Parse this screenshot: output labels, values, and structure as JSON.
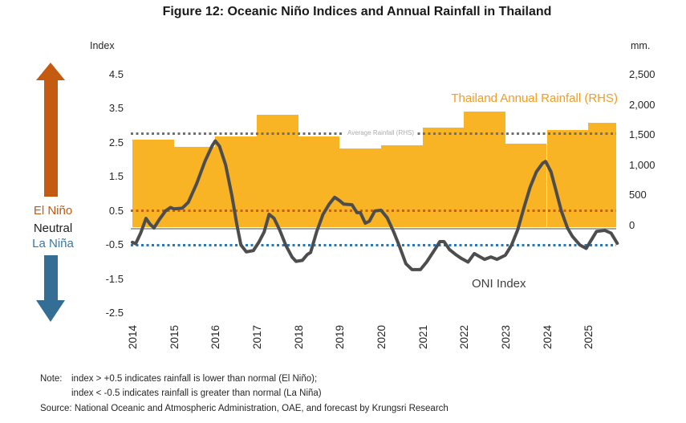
{
  "title": "Figure 12: Oceanic Niño Indices and Annual Rainfall in Thailand",
  "axes": {
    "left_unit": "Index",
    "right_unit": "mm.",
    "left_ticks": [
      "4.5",
      "3.5",
      "2.5",
      "1.5",
      "0.5",
      "-0.5",
      "-1.5",
      "-2.5"
    ],
    "right_ticks": [
      "2,500",
      "2,000",
      "1,500",
      "1,000",
      "500",
      "0"
    ]
  },
  "side_labels": {
    "el_nino": "El Niño",
    "neutral": "Neutral",
    "la_nina": "La Niña"
  },
  "legend": {
    "rainfall": "Thailand Annual Rainfall (RHS)",
    "oni": "ONI Index",
    "average": "Average Rainfall (RHS)"
  },
  "notes": {
    "label": "Note:",
    "line1": "index > +0.5 indicates rainfall is lower than normal (El Niño);",
    "line2": "index < -0.5 indicates rainfall is greater than normal (La Niña)",
    "source": "Source: National Oceanic and Atmospheric Administration, OAE, and forecast by Krungsri Research"
  },
  "colors": {
    "bar": "#F8B425",
    "rainfall_legend_text": "#F59B20",
    "oni_line": "#4D4D4D",
    "el_nino_threshold_dots": "#CE5A17",
    "la_nina_threshold_dots": "#2E75B6",
    "average_rainfall_dots": "#707070",
    "zero_line": "#A6A6A6",
    "up_arrow": "#C55A11",
    "down_arrow": "#356E94"
  },
  "chart_data": {
    "type": "combo",
    "title": "Figure 12: Oceanic Niño Indices and Annual Rainfall in Thailand",
    "left_axis": {
      "label": "Index",
      "min": -2.5,
      "max": 4.5,
      "ticks": [
        4.5,
        3.5,
        2.5,
        1.5,
        0.5,
        -0.5,
        -1.5,
        -2.5
      ]
    },
    "right_axis": {
      "label": "mm.",
      "min": 0,
      "max": 2500,
      "ticks": [
        2500,
        2000,
        1500,
        1000,
        500,
        0
      ]
    },
    "categories": [
      2014,
      2015,
      2016,
      2017,
      2018,
      2019,
      2020,
      2021,
      2022,
      2023,
      2024,
      2025
    ],
    "series": [
      {
        "name": "Thailand Annual Rainfall (RHS)",
        "type": "bar",
        "axis": "right",
        "values": [
          1440,
          1320,
          1490,
          1850,
          1490,
          1300,
          1350,
          1640,
          1900,
          1370,
          1600,
          1710
        ]
      },
      {
        "name": "ONI Index",
        "type": "line",
        "axis": "left",
        "points": [
          [
            2014.0,
            -0.42
          ],
          [
            2014.08,
            -0.46
          ],
          [
            2014.2,
            -0.15
          ],
          [
            2014.33,
            0.28
          ],
          [
            2014.42,
            0.12
          ],
          [
            2014.52,
            0.0
          ],
          [
            2014.65,
            0.25
          ],
          [
            2014.8,
            0.5
          ],
          [
            2014.92,
            0.6
          ],
          [
            2015.0,
            0.56
          ],
          [
            2015.2,
            0.58
          ],
          [
            2015.35,
            0.75
          ],
          [
            2015.55,
            1.3
          ],
          [
            2015.75,
            1.95
          ],
          [
            2015.92,
            2.4
          ],
          [
            2016.0,
            2.55
          ],
          [
            2016.1,
            2.4
          ],
          [
            2016.25,
            1.85
          ],
          [
            2016.4,
            0.95
          ],
          [
            2016.52,
            0.1
          ],
          [
            2016.62,
            -0.5
          ],
          [
            2016.75,
            -0.7
          ],
          [
            2016.92,
            -0.66
          ],
          [
            2017.05,
            -0.42
          ],
          [
            2017.18,
            -0.12
          ],
          [
            2017.3,
            0.4
          ],
          [
            2017.42,
            0.28
          ],
          [
            2017.55,
            -0.05
          ],
          [
            2017.7,
            -0.5
          ],
          [
            2017.85,
            -0.85
          ],
          [
            2017.95,
            -0.98
          ],
          [
            2018.1,
            -0.95
          ],
          [
            2018.22,
            -0.78
          ],
          [
            2018.3,
            -0.72
          ],
          [
            2018.45,
            -0.1
          ],
          [
            2018.6,
            0.4
          ],
          [
            2018.75,
            0.7
          ],
          [
            2018.88,
            0.9
          ],
          [
            2019.0,
            0.8
          ],
          [
            2019.1,
            0.7
          ],
          [
            2019.3,
            0.68
          ],
          [
            2019.42,
            0.45
          ],
          [
            2019.5,
            0.45
          ],
          [
            2019.62,
            0.14
          ],
          [
            2019.72,
            0.2
          ],
          [
            2019.85,
            0.5
          ],
          [
            2020.0,
            0.52
          ],
          [
            2020.15,
            0.3
          ],
          [
            2020.3,
            -0.1
          ],
          [
            2020.45,
            -0.55
          ],
          [
            2020.6,
            -1.05
          ],
          [
            2020.75,
            -1.22
          ],
          [
            2020.95,
            -1.22
          ],
          [
            2021.1,
            -1.0
          ],
          [
            2021.3,
            -0.63
          ],
          [
            2021.42,
            -0.4
          ],
          [
            2021.52,
            -0.4
          ],
          [
            2021.65,
            -0.63
          ],
          [
            2021.8,
            -0.78
          ],
          [
            2021.95,
            -0.9
          ],
          [
            2022.1,
            -1.0
          ],
          [
            2022.25,
            -0.75
          ],
          [
            2022.35,
            -0.82
          ],
          [
            2022.5,
            -0.92
          ],
          [
            2022.65,
            -0.85
          ],
          [
            2022.8,
            -0.92
          ],
          [
            2023.0,
            -0.8
          ],
          [
            2023.15,
            -0.5
          ],
          [
            2023.3,
            -0.05
          ],
          [
            2023.45,
            0.6
          ],
          [
            2023.6,
            1.2
          ],
          [
            2023.75,
            1.65
          ],
          [
            2023.9,
            1.9
          ],
          [
            2023.97,
            1.95
          ],
          [
            2024.1,
            1.65
          ],
          [
            2024.22,
            1.1
          ],
          [
            2024.35,
            0.5
          ],
          [
            2024.5,
            0.0
          ],
          [
            2024.62,
            -0.25
          ],
          [
            2024.8,
            -0.5
          ],
          [
            2024.95,
            -0.6
          ],
          [
            2025.1,
            -0.3
          ],
          [
            2025.2,
            -0.1
          ],
          [
            2025.4,
            -0.07
          ],
          [
            2025.55,
            -0.15
          ],
          [
            2025.7,
            -0.45
          ]
        ]
      },
      {
        "name": "Average Rainfall (RHS)",
        "type": "reference-line",
        "axis": "right",
        "value": 1540,
        "style": "dotted-gray"
      },
      {
        "name": "El Niño threshold",
        "type": "reference-line",
        "axis": "left",
        "value": 0.5,
        "style": "dotted-red"
      },
      {
        "name": "La Niña threshold",
        "type": "reference-line",
        "axis": "left",
        "value": -0.5,
        "style": "dotted-blue"
      },
      {
        "name": "Zero line",
        "type": "reference-line",
        "axis": "left",
        "value": 0,
        "style": "solid-gray"
      }
    ],
    "legend_position": "inside-top-right",
    "grid": false
  }
}
